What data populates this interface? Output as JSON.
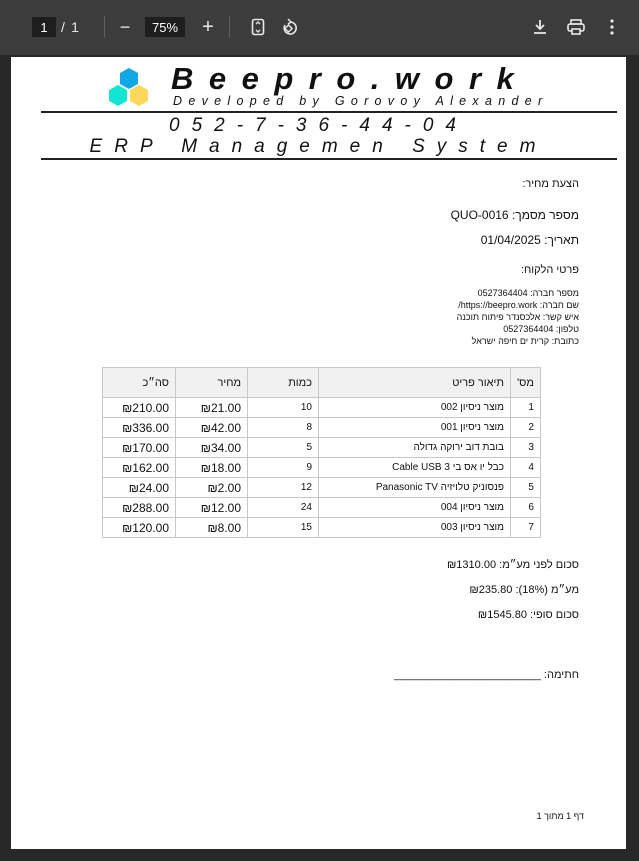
{
  "toolbar": {
    "page_current": "1",
    "page_sep": "/",
    "page_total": "1",
    "zoom_out": "−",
    "zoom_level": "75%",
    "zoom_in": "+"
  },
  "header": {
    "brand": "Beepro.work",
    "developer": "Developed by Gorovoy Alexander",
    "phone": "052-7-36-44-04",
    "system": "ERP Managemen System",
    "logo_colors": [
      "#12a8e6",
      "#12e6d2",
      "#fbd75a"
    ]
  },
  "doc": {
    "title": "הצעת מחיר:",
    "number": "מספר מסמך: QUO-0016",
    "date": "תאריך: 01/04/2025",
    "customer_heading": "פרטי הלקוח:",
    "customer": [
      "מספר חברה: 0527364404",
      "שם חברה: https://beepro.work/",
      "איש קשר: אלכסנדר פיתוח תוכנה",
      "טלפון: 0527364404",
      "כתובת: קרית ים חיפה ישראל"
    ]
  },
  "table": {
    "headers": [
      "מס'",
      "תיאור פריט",
      "כמות",
      "מחיר",
      "סה״כ"
    ],
    "rows": [
      [
        "1",
        "מוצר ניסיון 002",
        "10",
        "₪21.00",
        "₪210.00"
      ],
      [
        "2",
        "מוצר ניסיון 001",
        "8",
        "₪42.00",
        "₪336.00"
      ],
      [
        "3",
        "בובת דוב ירוקה גדולה",
        "5",
        "₪34.00",
        "₪170.00"
      ],
      [
        "4",
        "כבל יו אס בי 3 Cable USB",
        "9",
        "₪18.00",
        "₪162.00"
      ],
      [
        "5",
        "פנסוניק טלויזיה Panasonic TV",
        "12",
        "₪2.00",
        "₪24.00"
      ],
      [
        "6",
        "מוצר ניסיון 004",
        "24",
        "₪12.00",
        "₪288.00"
      ],
      [
        "7",
        "מוצר ניסיון 003",
        "15",
        "₪8.00",
        "₪120.00"
      ]
    ]
  },
  "totals": {
    "subtotal": "סכום לפני מע״מ: ₪1310.00",
    "vat": "מע״מ (18%): ₪235.80",
    "total": "סכום סופי: ₪1545.80"
  },
  "signature": "חתימה: ________________________",
  "footer": "דף 1 מתוך 1"
}
